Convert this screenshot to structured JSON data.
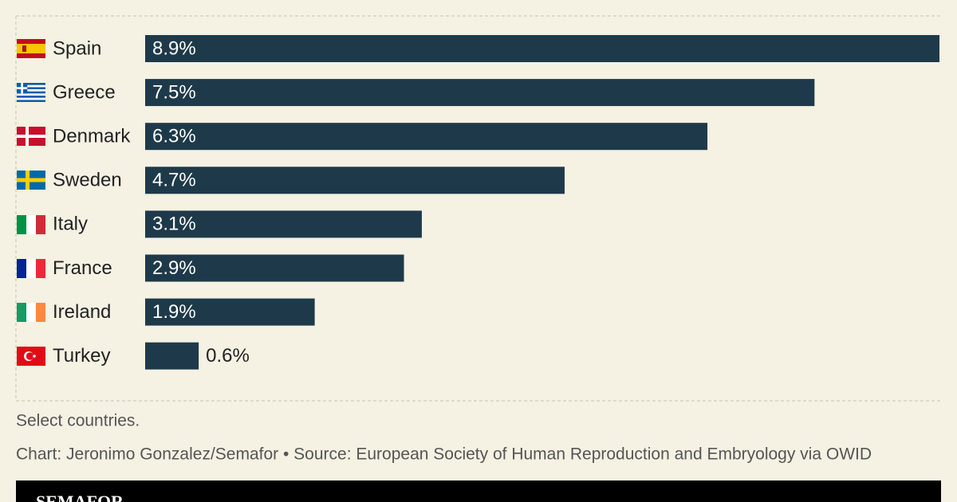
{
  "chart_data": {
    "type": "bar",
    "orientation": "horizontal",
    "categories": [
      "Spain",
      "Greece",
      "Denmark",
      "Sweden",
      "Italy",
      "France",
      "Ireland",
      "Turkey"
    ],
    "values": [
      8.9,
      7.5,
      6.3,
      4.7,
      3.1,
      2.9,
      1.9,
      0.6
    ],
    "value_labels": [
      "8.9%",
      "7.5%",
      "6.3%",
      "4.7%",
      "3.1%",
      "2.9%",
      "1.9%",
      "0.6%"
    ],
    "color": "#1e3a4a",
    "note": "Select countries.",
    "source": "Chart: Jeronimo Gonzalez/Semafor • Source: European Society of Human Reproduction and Embryology via OWID",
    "brand": "SEMAFOR"
  }
}
